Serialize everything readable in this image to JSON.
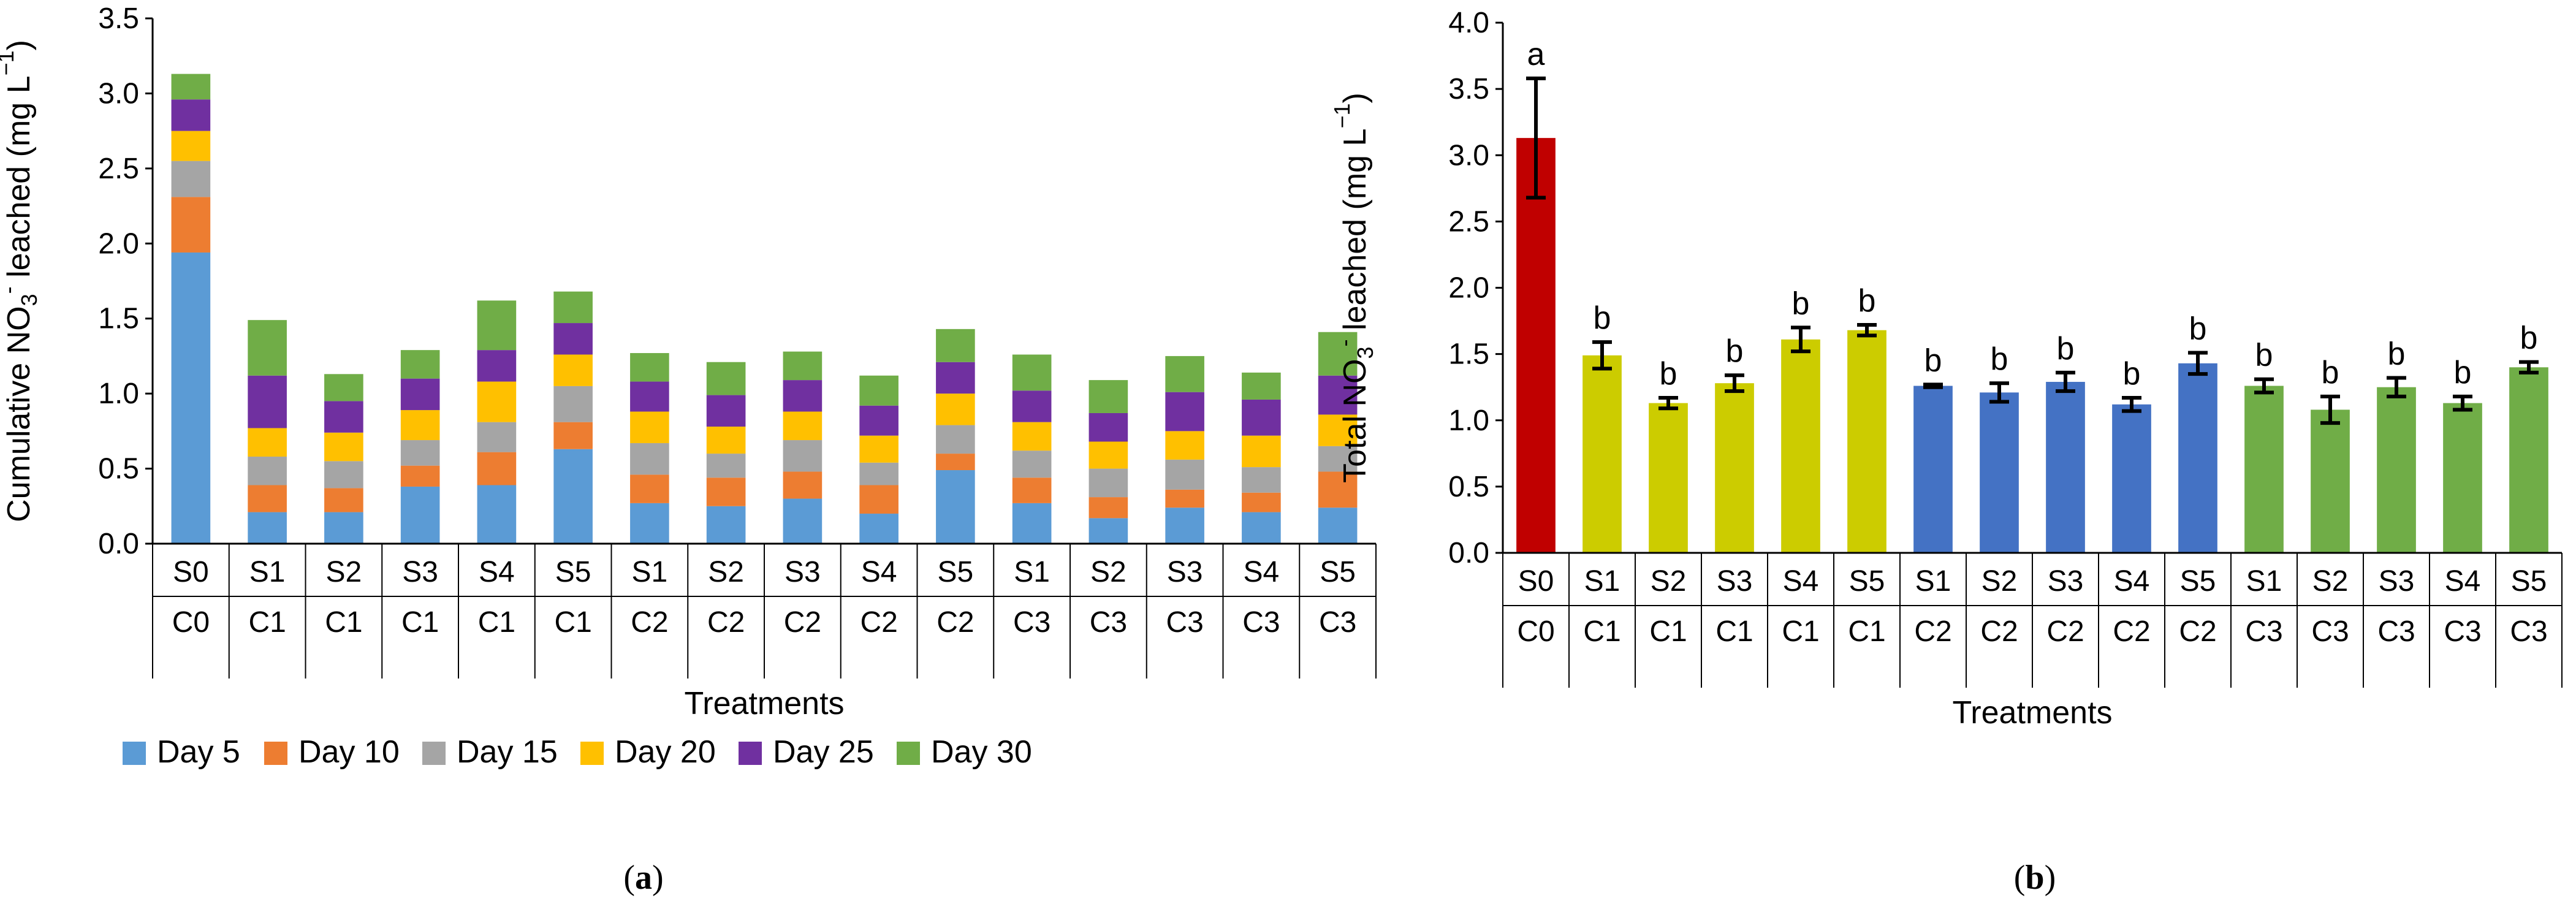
{
  "panels": [
    {
      "label_prefix": "(",
      "label_letter": "a",
      "label_suffix": ")"
    },
    {
      "label_prefix": "(",
      "label_letter": "b",
      "label_suffix": ")"
    }
  ],
  "chart_data": [
    {
      "type": "bar",
      "stacked": true,
      "title": "",
      "xlabel": "Treatments",
      "ylabel_parts": [
        "Cumulative NO",
        "3",
        "-",
        " leached (mg L",
        "−1",
        ")"
      ],
      "ylim": [
        0,
        3.5
      ],
      "yticks": [
        "0.0",
        "0.5",
        "1.0",
        "1.5",
        "2.0",
        "2.5",
        "3.0",
        "3.5"
      ],
      "categories": [
        {
          "soil": "S0",
          "comp": "C0"
        },
        {
          "soil": "S1",
          "comp": "C1"
        },
        {
          "soil": "S2",
          "comp": "C1"
        },
        {
          "soil": "S3",
          "comp": "C1"
        },
        {
          "soil": "S4",
          "comp": "C1"
        },
        {
          "soil": "S5",
          "comp": "C1"
        },
        {
          "soil": "S1",
          "comp": "C2"
        },
        {
          "soil": "S2",
          "comp": "C2"
        },
        {
          "soil": "S3",
          "comp": "C2"
        },
        {
          "soil": "S4",
          "comp": "C2"
        },
        {
          "soil": "S5",
          "comp": "C2"
        },
        {
          "soil": "S1",
          "comp": "C3"
        },
        {
          "soil": "S2",
          "comp": "C3"
        },
        {
          "soil": "S3",
          "comp": "C3"
        },
        {
          "soil": "S4",
          "comp": "C3"
        },
        {
          "soil": "S5",
          "comp": "C3"
        }
      ],
      "legend_position": "bottom",
      "series": [
        {
          "name": "Day 5",
          "color": "#5B9BD5",
          "values": [
            1.94,
            0.21,
            0.21,
            0.38,
            0.39,
            0.63,
            0.27,
            0.25,
            0.3,
            0.2,
            0.49,
            0.27,
            0.17,
            0.24,
            0.21,
            0.24
          ]
        },
        {
          "name": "Day 10",
          "color": "#ED7D31",
          "values": [
            0.37,
            0.18,
            0.16,
            0.14,
            0.22,
            0.18,
            0.19,
            0.19,
            0.18,
            0.19,
            0.11,
            0.17,
            0.14,
            0.12,
            0.13,
            0.24
          ]
        },
        {
          "name": "Day 15",
          "color": "#A5A5A5",
          "values": [
            0.24,
            0.19,
            0.18,
            0.17,
            0.2,
            0.24,
            0.21,
            0.16,
            0.21,
            0.15,
            0.19,
            0.18,
            0.19,
            0.2,
            0.17,
            0.17
          ]
        },
        {
          "name": "Day 20",
          "color": "#FFC000",
          "values": [
            0.2,
            0.19,
            0.19,
            0.2,
            0.27,
            0.21,
            0.21,
            0.18,
            0.19,
            0.18,
            0.21,
            0.19,
            0.18,
            0.19,
            0.21,
            0.21
          ]
        },
        {
          "name": "Day 25",
          "color": "#7030A0",
          "values": [
            0.21,
            0.35,
            0.21,
            0.21,
            0.21,
            0.21,
            0.2,
            0.21,
            0.21,
            0.2,
            0.21,
            0.21,
            0.19,
            0.26,
            0.24,
            0.26
          ]
        },
        {
          "name": "Day 30",
          "color": "#70AD47",
          "values": [
            0.17,
            0.37,
            0.18,
            0.19,
            0.33,
            0.21,
            0.19,
            0.22,
            0.19,
            0.2,
            0.22,
            0.24,
            0.22,
            0.24,
            0.18,
            0.29
          ]
        }
      ]
    },
    {
      "type": "bar",
      "stacked": false,
      "title": "",
      "xlabel": "Treatments",
      "ylabel_parts": [
        "Total  NO",
        "3",
        "-",
        " leached (mg L",
        "−1",
        ")"
      ],
      "ylim": [
        0,
        4.0
      ],
      "yticks": [
        "0.0",
        "0.5",
        "1.0",
        "1.5",
        "2.0",
        "2.5",
        "3.0",
        "3.5",
        "4.0"
      ],
      "categories": [
        {
          "soil": "S0",
          "comp": "C0"
        },
        {
          "soil": "S1",
          "comp": "C1"
        },
        {
          "soil": "S2",
          "comp": "C1"
        },
        {
          "soil": "S3",
          "comp": "C1"
        },
        {
          "soil": "S4",
          "comp": "C1"
        },
        {
          "soil": "S5",
          "comp": "C1"
        },
        {
          "soil": "S1",
          "comp": "C2"
        },
        {
          "soil": "S2",
          "comp": "C2"
        },
        {
          "soil": "S3",
          "comp": "C2"
        },
        {
          "soil": "S4",
          "comp": "C2"
        },
        {
          "soil": "S5",
          "comp": "C2"
        },
        {
          "soil": "S1",
          "comp": "C3"
        },
        {
          "soil": "S2",
          "comp": "C3"
        },
        {
          "soil": "S3",
          "comp": "C3"
        },
        {
          "soil": "S4",
          "comp": "C3"
        },
        {
          "soil": "S5",
          "comp": "C3"
        }
      ],
      "values": [
        3.13,
        1.49,
        1.13,
        1.28,
        1.61,
        1.68,
        1.26,
        1.21,
        1.29,
        1.12,
        1.43,
        1.26,
        1.08,
        1.25,
        1.13,
        1.4
      ],
      "errors": [
        0.45,
        0.1,
        0.04,
        0.06,
        0.09,
        0.04,
        0.01,
        0.07,
        0.07,
        0.05,
        0.08,
        0.05,
        0.1,
        0.07,
        0.05,
        0.04
      ],
      "significance": [
        "a",
        "b",
        "b",
        "b",
        "b",
        "b",
        "b",
        "b",
        "b",
        "b",
        "b",
        "b",
        "b",
        "b",
        "b",
        "b"
      ],
      "colors": [
        "#C00000",
        "#CCCC00",
        "#CCCC00",
        "#CCCC00",
        "#CCCC00",
        "#CCCC00",
        "#4472C4",
        "#4472C4",
        "#4472C4",
        "#4472C4",
        "#4472C4",
        "#70AD47",
        "#70AD47",
        "#70AD47",
        "#70AD47",
        "#70AD47"
      ]
    }
  ]
}
